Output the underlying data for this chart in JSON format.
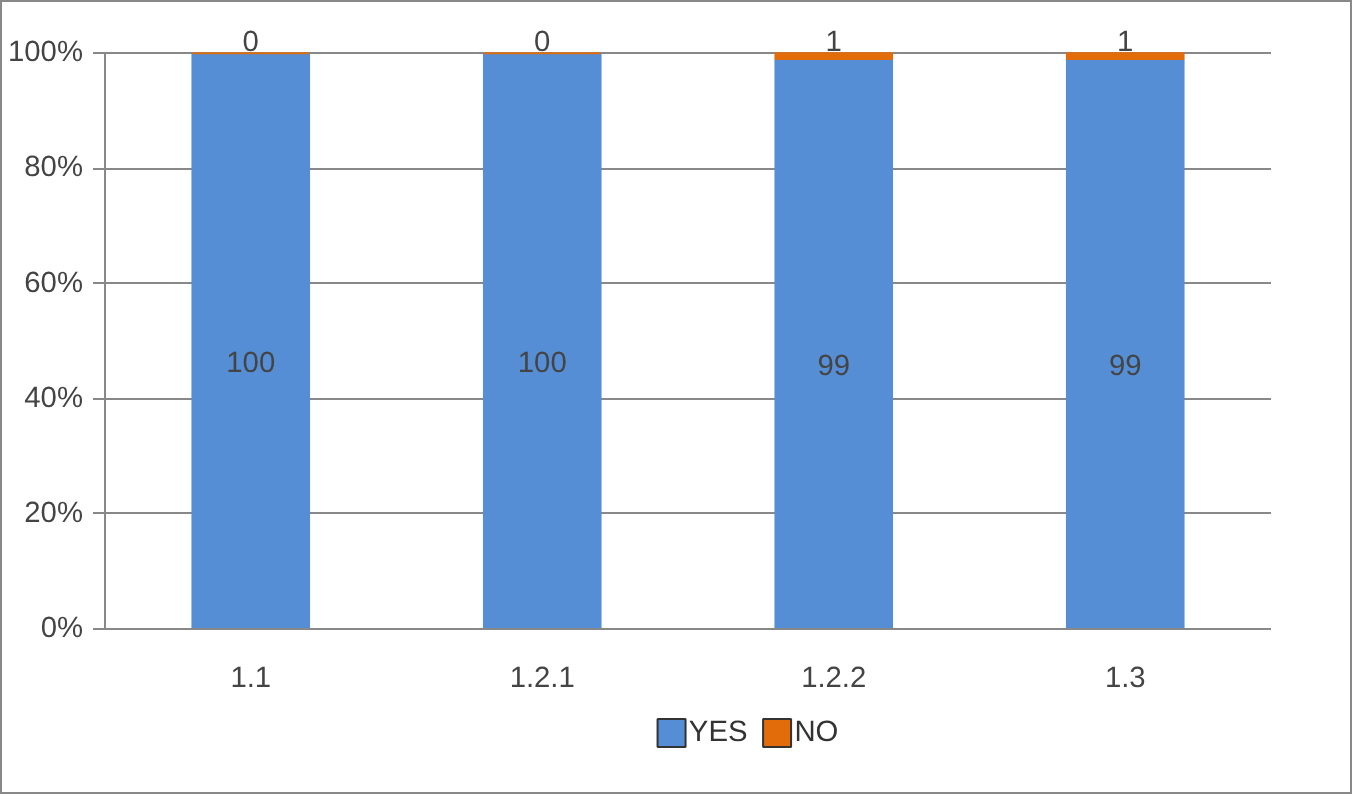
{
  "chart_data": {
    "type": "bar",
    "stacked": true,
    "categories": [
      "1.1",
      "1.2.1",
      "1.2.2",
      "1.3"
    ],
    "series": [
      {
        "name": "YES",
        "color": "#558ed5",
        "values": [
          100,
          100,
          99,
          99
        ]
      },
      {
        "name": "NO",
        "color": "#e36c0a",
        "values": [
          0,
          0,
          1,
          1
        ]
      }
    ],
    "ylim": [
      0,
      100
    ],
    "yticks": [
      {
        "value": 0,
        "label": "0%"
      },
      {
        "value": 20,
        "label": "20%"
      },
      {
        "value": 40,
        "label": "40%"
      },
      {
        "value": 60,
        "label": "60%"
      },
      {
        "value": 80,
        "label": "80%"
      },
      {
        "value": 100,
        "label": "100%"
      }
    ],
    "grid": "y",
    "legend": "bottom",
    "data_labels": true
  }
}
